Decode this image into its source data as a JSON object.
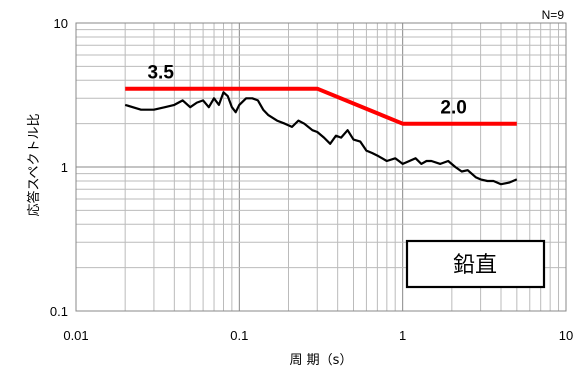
{
  "chart_data": {
    "type": "line",
    "xscale": "log",
    "yscale": "log",
    "xlim": [
      0.01,
      10
    ],
    "ylim": [
      0.1,
      10
    ],
    "xlabel": "周 期（s）",
    "ylabel": "応答スペクトル比",
    "x_ticks": [
      "0.01",
      "0.1",
      "1",
      "10"
    ],
    "y_ticks": [
      "0.1",
      "1",
      "10"
    ],
    "note": "N=9",
    "box_label": "鉛直",
    "grid": true,
    "series": [
      {
        "color": "#ff0000",
        "x": [
          0.02,
          0.3,
          1,
          5
        ],
        "y": [
          3.5,
          3.5,
          2.0,
          2.0
        ]
      },
      {
        "color": "#000000",
        "x": [
          0.02,
          0.025,
          0.03,
          0.035,
          0.04,
          0.045,
          0.05,
          0.055,
          0.06,
          0.065,
          0.07,
          0.075,
          0.08,
          0.085,
          0.09,
          0.095,
          0.1,
          0.11,
          0.12,
          0.13,
          0.14,
          0.15,
          0.17,
          0.19,
          0.21,
          0.23,
          0.25,
          0.28,
          0.3,
          0.33,
          0.36,
          0.39,
          0.42,
          0.46,
          0.5,
          0.55,
          0.6,
          0.65,
          0.7,
          0.8,
          0.9,
          1.0,
          1.1,
          1.2,
          1.3,
          1.4,
          1.5,
          1.7,
          1.9,
          2.1,
          2.3,
          2.5,
          2.8,
          3.0,
          3.3,
          3.6,
          4.0,
          4.5,
          5.0
        ],
        "y": [
          2.7,
          2.5,
          2.5,
          2.6,
          2.7,
          2.9,
          2.6,
          2.8,
          2.9,
          2.6,
          3.0,
          2.7,
          3.3,
          3.1,
          2.6,
          2.4,
          2.7,
          3.0,
          3.0,
          2.9,
          2.5,
          2.3,
          2.1,
          2.0,
          1.9,
          2.1,
          2.0,
          1.8,
          1.75,
          1.6,
          1.45,
          1.65,
          1.6,
          1.8,
          1.55,
          1.5,
          1.3,
          1.25,
          1.2,
          1.1,
          1.15,
          1.05,
          1.1,
          1.15,
          1.05,
          1.1,
          1.1,
          1.05,
          1.1,
          1.0,
          0.93,
          0.95,
          0.85,
          0.82,
          0.8,
          0.8,
          0.76,
          0.78,
          0.82
        ]
      }
    ],
    "annotations": [
      {
        "text": "3.5",
        "x": 0.033,
        "y": 3.5
      },
      {
        "text": "2.0",
        "x": 2.05,
        "y": 2.0
      }
    ]
  }
}
